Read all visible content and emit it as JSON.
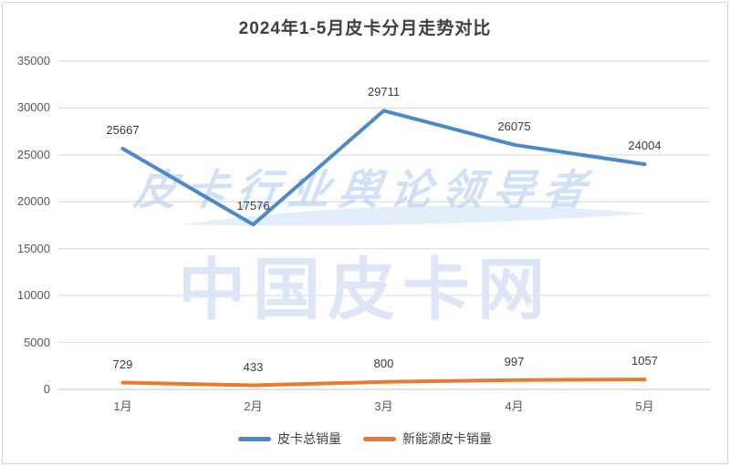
{
  "window": {
    "title": "2024年1-5月皮卡分月走势对比"
  },
  "watermark": {
    "tagline": "皮卡行业舆论领导者",
    "brand": "中国皮卡网"
  },
  "colors": {
    "total_series": "#4d89c8",
    "nev_series": "#ea7a2f",
    "gridline": "#d9d9d9",
    "axis_line": "#c3c3c3",
    "tick_text": "#595959",
    "label_text": "#3b3b3b",
    "watermark_blue": "#dce6f7"
  },
  "chart_data": {
    "type": "line",
    "title": "2024年1-5月皮卡分月走势对比",
    "categories": [
      "1月",
      "2月",
      "3月",
      "4月",
      "5月"
    ],
    "series": [
      {
        "name": "皮卡总销量",
        "color": "#4d89c8",
        "values": [
          25667,
          17576,
          29711,
          26075,
          24004
        ]
      },
      {
        "name": "新能源皮卡销量",
        "color": "#ea7a2f",
        "values": [
          729,
          433,
          800,
          997,
          1057
        ]
      }
    ],
    "xlabel": "",
    "ylabel": "",
    "ylim": [
      0,
      35000
    ],
    "yticks": [
      0,
      5000,
      10000,
      15000,
      20000,
      25000,
      30000,
      35000
    ],
    "grid": "horizontal",
    "legend_position": "bottom",
    "data_labels": "above"
  }
}
